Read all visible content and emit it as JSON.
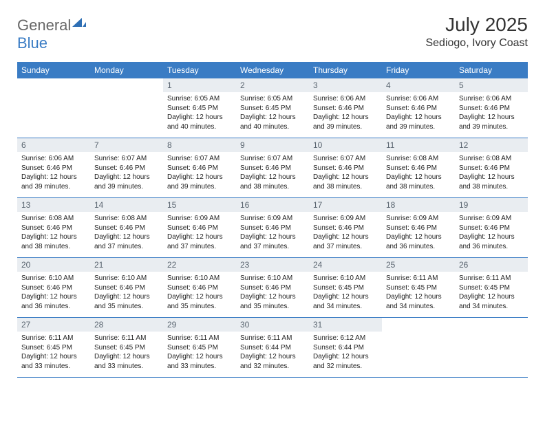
{
  "brand": {
    "part1": "General",
    "part2": "Blue"
  },
  "title": "July 2025",
  "location": "Sediogo, Ivory Coast",
  "colors": {
    "header_bg": "#3a7cc4",
    "header_text": "#ffffff",
    "daynum_bg": "#e9edf1",
    "daynum_text": "#5a6570",
    "rule": "#3a7cc4",
    "body_text": "#222222"
  },
  "weekdays": [
    "Sunday",
    "Monday",
    "Tuesday",
    "Wednesday",
    "Thursday",
    "Friday",
    "Saturday"
  ],
  "first_weekday_index": 2,
  "days": [
    {
      "n": "1",
      "sunrise": "Sunrise: 6:05 AM",
      "sunset": "Sunset: 6:45 PM",
      "daylight": "Daylight: 12 hours and 40 minutes."
    },
    {
      "n": "2",
      "sunrise": "Sunrise: 6:05 AM",
      "sunset": "Sunset: 6:45 PM",
      "daylight": "Daylight: 12 hours and 40 minutes."
    },
    {
      "n": "3",
      "sunrise": "Sunrise: 6:06 AM",
      "sunset": "Sunset: 6:46 PM",
      "daylight": "Daylight: 12 hours and 39 minutes."
    },
    {
      "n": "4",
      "sunrise": "Sunrise: 6:06 AM",
      "sunset": "Sunset: 6:46 PM",
      "daylight": "Daylight: 12 hours and 39 minutes."
    },
    {
      "n": "5",
      "sunrise": "Sunrise: 6:06 AM",
      "sunset": "Sunset: 6:46 PM",
      "daylight": "Daylight: 12 hours and 39 minutes."
    },
    {
      "n": "6",
      "sunrise": "Sunrise: 6:06 AM",
      "sunset": "Sunset: 6:46 PM",
      "daylight": "Daylight: 12 hours and 39 minutes."
    },
    {
      "n": "7",
      "sunrise": "Sunrise: 6:07 AM",
      "sunset": "Sunset: 6:46 PM",
      "daylight": "Daylight: 12 hours and 39 minutes."
    },
    {
      "n": "8",
      "sunrise": "Sunrise: 6:07 AM",
      "sunset": "Sunset: 6:46 PM",
      "daylight": "Daylight: 12 hours and 39 minutes."
    },
    {
      "n": "9",
      "sunrise": "Sunrise: 6:07 AM",
      "sunset": "Sunset: 6:46 PM",
      "daylight": "Daylight: 12 hours and 38 minutes."
    },
    {
      "n": "10",
      "sunrise": "Sunrise: 6:07 AM",
      "sunset": "Sunset: 6:46 PM",
      "daylight": "Daylight: 12 hours and 38 minutes."
    },
    {
      "n": "11",
      "sunrise": "Sunrise: 6:08 AM",
      "sunset": "Sunset: 6:46 PM",
      "daylight": "Daylight: 12 hours and 38 minutes."
    },
    {
      "n": "12",
      "sunrise": "Sunrise: 6:08 AM",
      "sunset": "Sunset: 6:46 PM",
      "daylight": "Daylight: 12 hours and 38 minutes."
    },
    {
      "n": "13",
      "sunrise": "Sunrise: 6:08 AM",
      "sunset": "Sunset: 6:46 PM",
      "daylight": "Daylight: 12 hours and 38 minutes."
    },
    {
      "n": "14",
      "sunrise": "Sunrise: 6:08 AM",
      "sunset": "Sunset: 6:46 PM",
      "daylight": "Daylight: 12 hours and 37 minutes."
    },
    {
      "n": "15",
      "sunrise": "Sunrise: 6:09 AM",
      "sunset": "Sunset: 6:46 PM",
      "daylight": "Daylight: 12 hours and 37 minutes."
    },
    {
      "n": "16",
      "sunrise": "Sunrise: 6:09 AM",
      "sunset": "Sunset: 6:46 PM",
      "daylight": "Daylight: 12 hours and 37 minutes."
    },
    {
      "n": "17",
      "sunrise": "Sunrise: 6:09 AM",
      "sunset": "Sunset: 6:46 PM",
      "daylight": "Daylight: 12 hours and 37 minutes."
    },
    {
      "n": "18",
      "sunrise": "Sunrise: 6:09 AM",
      "sunset": "Sunset: 6:46 PM",
      "daylight": "Daylight: 12 hours and 36 minutes."
    },
    {
      "n": "19",
      "sunrise": "Sunrise: 6:09 AM",
      "sunset": "Sunset: 6:46 PM",
      "daylight": "Daylight: 12 hours and 36 minutes."
    },
    {
      "n": "20",
      "sunrise": "Sunrise: 6:10 AM",
      "sunset": "Sunset: 6:46 PM",
      "daylight": "Daylight: 12 hours and 36 minutes."
    },
    {
      "n": "21",
      "sunrise": "Sunrise: 6:10 AM",
      "sunset": "Sunset: 6:46 PM",
      "daylight": "Daylight: 12 hours and 35 minutes."
    },
    {
      "n": "22",
      "sunrise": "Sunrise: 6:10 AM",
      "sunset": "Sunset: 6:46 PM",
      "daylight": "Daylight: 12 hours and 35 minutes."
    },
    {
      "n": "23",
      "sunrise": "Sunrise: 6:10 AM",
      "sunset": "Sunset: 6:46 PM",
      "daylight": "Daylight: 12 hours and 35 minutes."
    },
    {
      "n": "24",
      "sunrise": "Sunrise: 6:10 AM",
      "sunset": "Sunset: 6:45 PM",
      "daylight": "Daylight: 12 hours and 34 minutes."
    },
    {
      "n": "25",
      "sunrise": "Sunrise: 6:11 AM",
      "sunset": "Sunset: 6:45 PM",
      "daylight": "Daylight: 12 hours and 34 minutes."
    },
    {
      "n": "26",
      "sunrise": "Sunrise: 6:11 AM",
      "sunset": "Sunset: 6:45 PM",
      "daylight": "Daylight: 12 hours and 34 minutes."
    },
    {
      "n": "27",
      "sunrise": "Sunrise: 6:11 AM",
      "sunset": "Sunset: 6:45 PM",
      "daylight": "Daylight: 12 hours and 33 minutes."
    },
    {
      "n": "28",
      "sunrise": "Sunrise: 6:11 AM",
      "sunset": "Sunset: 6:45 PM",
      "daylight": "Daylight: 12 hours and 33 minutes."
    },
    {
      "n": "29",
      "sunrise": "Sunrise: 6:11 AM",
      "sunset": "Sunset: 6:45 PM",
      "daylight": "Daylight: 12 hours and 33 minutes."
    },
    {
      "n": "30",
      "sunrise": "Sunrise: 6:11 AM",
      "sunset": "Sunset: 6:44 PM",
      "daylight": "Daylight: 12 hours and 32 minutes."
    },
    {
      "n": "31",
      "sunrise": "Sunrise: 6:12 AM",
      "sunset": "Sunset: 6:44 PM",
      "daylight": "Daylight: 12 hours and 32 minutes."
    }
  ]
}
